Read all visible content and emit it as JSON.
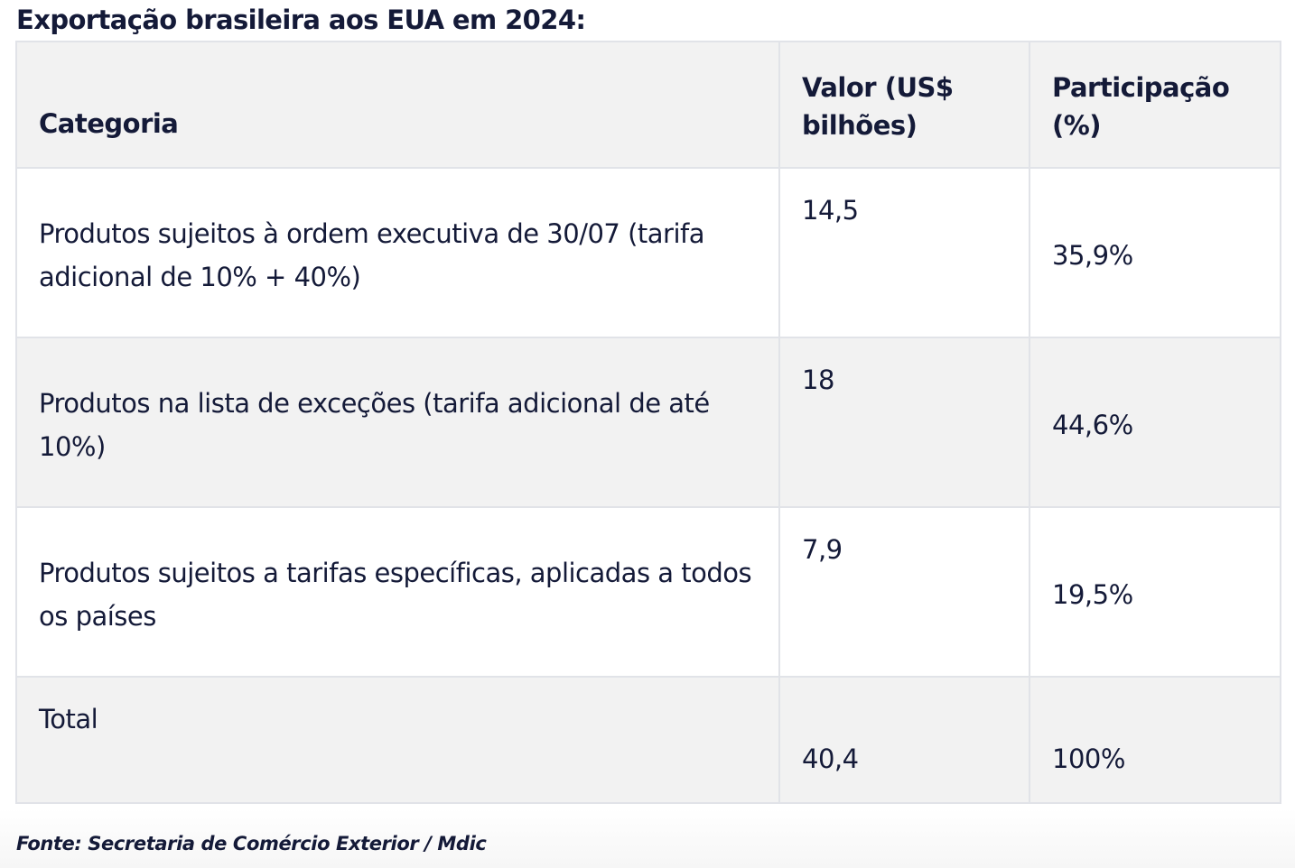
{
  "title": "Exportação brasileira aos EUA em 2024:",
  "table": {
    "headers": {
      "category": "Categoria",
      "value": "Valor (US$ bilhões)",
      "share": "Participação (%)"
    },
    "rows": [
      {
        "category": "Produtos sujeitos à ordem executiva de 30/07 (tarifa adicional de 10% + 40%)",
        "value": "14,5",
        "share": "35,9%"
      },
      {
        "category": "Produtos na lista de exceções (tarifa adicional de até 10%)",
        "value": "18",
        "share": "44,6%"
      },
      {
        "category": "Produtos sujeitos a tarifas específicas, aplicadas a todos os países",
        "value": "7,9",
        "share": "19,5%"
      }
    ],
    "total": {
      "category": "Total",
      "value": "40,4",
      "share": "100%"
    }
  },
  "source": "Fonte: Secretaria de Comércio Exterior / Mdic",
  "colors": {
    "text": "#141a38",
    "shaded_row": "#f2f2f2",
    "border": "#e1e3e8"
  }
}
